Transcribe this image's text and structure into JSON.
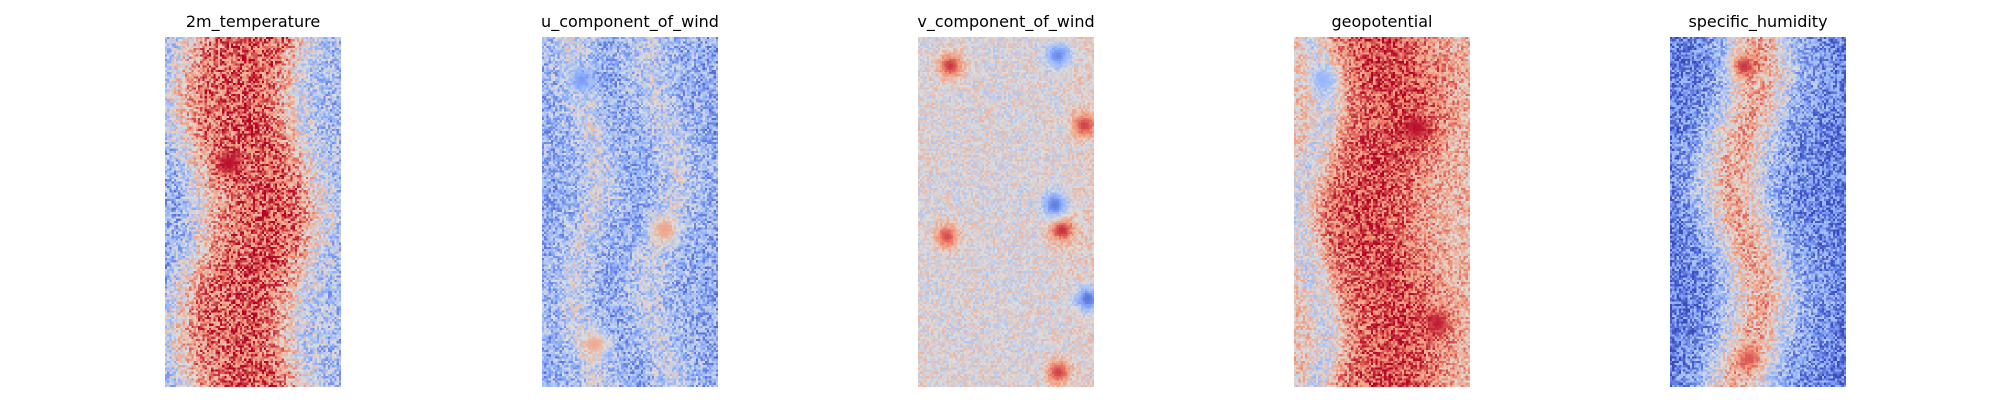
{
  "chart_data": [
    {
      "type": "heatmap",
      "title": "2m_temperature",
      "colormap": "coolwarm",
      "axis": "off",
      "grid": [
        80,
        160
      ],
      "value_range": [
        0,
        1
      ],
      "column_profile": [
        0.3,
        0.42,
        0.58,
        0.72,
        0.8,
        0.82,
        0.85,
        0.86,
        0.84,
        0.76,
        0.62,
        0.45,
        0.38,
        0.35
      ],
      "noise": 0.22,
      "hotspots": [
        {
          "u": 0.36,
          "v": 0.36,
          "value": 0.98
        }
      ]
    },
    {
      "type": "heatmap",
      "title": "u_component_of_wind",
      "colormap": "coolwarm",
      "axis": "off",
      "grid": [
        80,
        160
      ],
      "value_range": [
        0,
        1
      ],
      "column_profile": [
        0.28,
        0.3,
        0.34,
        0.46,
        0.4,
        0.3,
        0.27,
        0.3,
        0.38,
        0.44,
        0.36,
        0.3,
        0.28,
        0.26
      ],
      "noise": 0.2,
      "hotspots": [
        {
          "u": 0.22,
          "v": 0.12,
          "value": 0.2
        },
        {
          "u": 0.7,
          "v": 0.55,
          "value": 0.72
        },
        {
          "u": 0.3,
          "v": 0.88,
          "value": 0.7
        }
      ]
    },
    {
      "type": "heatmap",
      "title": "v_component_of_wind",
      "colormap": "coolwarm",
      "axis": "off",
      "grid": [
        80,
        160
      ],
      "value_range": [
        0,
        1
      ],
      "column_profile": [
        0.52,
        0.5,
        0.49,
        0.5,
        0.51,
        0.5,
        0.49,
        0.5,
        0.5,
        0.51,
        0.5,
        0.52,
        0.54,
        0.55
      ],
      "noise": 0.14,
      "hotspots": [
        {
          "u": 0.18,
          "v": 0.08,
          "value": 0.92
        },
        {
          "u": 0.8,
          "v": 0.05,
          "value": 0.15
        },
        {
          "u": 0.82,
          "v": 0.55,
          "value": 0.95
        },
        {
          "u": 0.78,
          "v": 0.48,
          "value": 0.12
        },
        {
          "u": 0.95,
          "v": 0.25,
          "value": 0.9
        },
        {
          "u": 0.97,
          "v": 0.75,
          "value": 0.1
        },
        {
          "u": 0.16,
          "v": 0.57,
          "value": 0.88
        },
        {
          "u": 0.8,
          "v": 0.96,
          "value": 0.9
        }
      ]
    },
    {
      "type": "heatmap",
      "title": "geopotential",
      "colormap": "coolwarm",
      "axis": "off",
      "grid": [
        80,
        160
      ],
      "value_range": [
        0,
        1
      ],
      "column_profile": [
        0.6,
        0.45,
        0.52,
        0.74,
        0.82,
        0.86,
        0.88,
        0.88,
        0.86,
        0.82,
        0.76,
        0.7,
        0.66,
        0.64
      ],
      "noise": 0.18,
      "hotspots": [
        {
          "u": 0.7,
          "v": 0.26,
          "value": 0.98
        },
        {
          "u": 0.82,
          "v": 0.82,
          "value": 0.96
        },
        {
          "u": 0.16,
          "v": 0.12,
          "value": 0.28
        }
      ]
    },
    {
      "type": "heatmap",
      "title": "specific_humidity",
      "colormap": "coolwarm",
      "axis": "off",
      "grid": [
        80,
        160
      ],
      "value_range": [
        0,
        1
      ],
      "column_profile": [
        0.12,
        0.16,
        0.22,
        0.34,
        0.5,
        0.66,
        0.68,
        0.56,
        0.4,
        0.26,
        0.22,
        0.18,
        0.14,
        0.12
      ],
      "noise": 0.2,
      "hotspots": [
        {
          "u": 0.42,
          "v": 0.08,
          "value": 0.92
        },
        {
          "u": 0.45,
          "v": 0.92,
          "value": 0.86
        }
      ]
    }
  ]
}
